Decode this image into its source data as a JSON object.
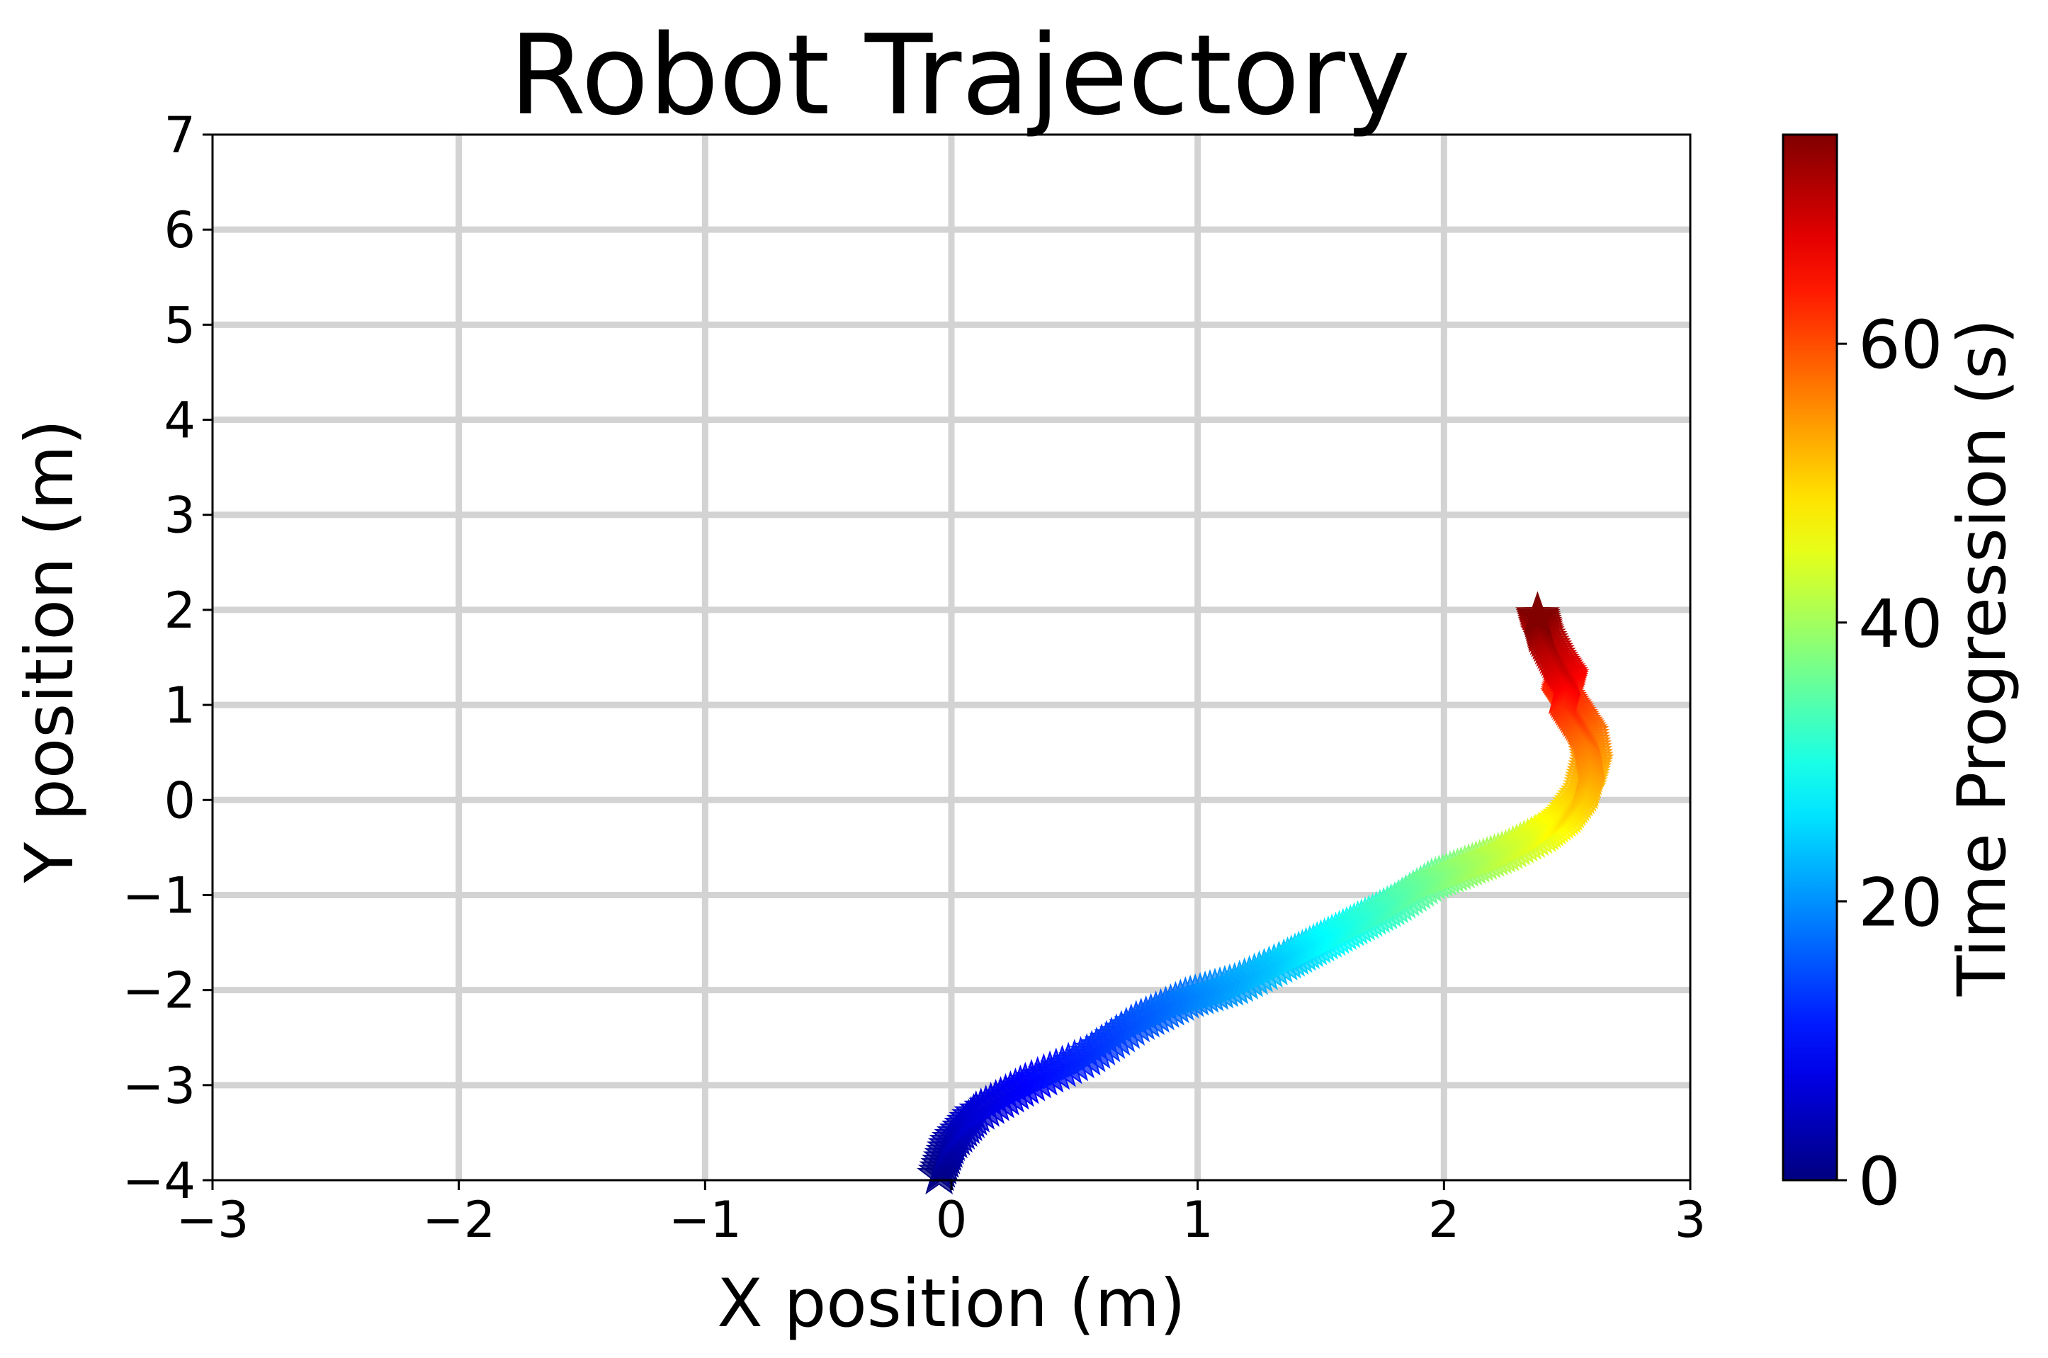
{
  "chart_data": {
    "type": "scatter",
    "title": "Robot Trajectory",
    "xlabel": "X position (m)",
    "ylabel": "Y position (m)",
    "xlim": [
      -3,
      3
    ],
    "ylim": [
      -4,
      7
    ],
    "xticks": [
      -3,
      -2,
      -1,
      0,
      1,
      2,
      3
    ],
    "yticks": [
      -4,
      -3,
      -2,
      -1,
      0,
      1,
      2,
      3,
      4,
      5,
      6,
      7
    ],
    "xtick_labels": [
      "−3",
      "−2",
      "−1",
      "0",
      "1",
      "2",
      "3"
    ],
    "ytick_labels": [
      "−4",
      "−3",
      "−2",
      "−1",
      "0",
      "1",
      "2",
      "3",
      "4",
      "5",
      "6",
      "7"
    ],
    "grid": true,
    "grid_color": "#d3d3d3",
    "marker": "star",
    "colormap": "jet",
    "colorbar": {
      "label": "Time Progression (s)",
      "range": [
        0,
        75
      ],
      "ticks": [
        0,
        20,
        40,
        60
      ],
      "tick_labels": [
        "0",
        "20",
        "40",
        "60"
      ]
    },
    "trajectory_keypoints": [
      {
        "t": 0,
        "x": -0.05,
        "y": -3.95
      },
      {
        "t": 3,
        "x": 0.0,
        "y": -3.6
      },
      {
        "t": 6,
        "x": 0.1,
        "y": -3.3
      },
      {
        "t": 9,
        "x": 0.3,
        "y": -3.0
      },
      {
        "t": 12,
        "x": 0.55,
        "y": -2.7
      },
      {
        "t": 15,
        "x": 0.75,
        "y": -2.35
      },
      {
        "t": 18,
        "x": 0.95,
        "y": -2.1
      },
      {
        "t": 21,
        "x": 1.15,
        "y": -1.95
      },
      {
        "t": 24,
        "x": 1.35,
        "y": -1.7
      },
      {
        "t": 27,
        "x": 1.5,
        "y": -1.5
      },
      {
        "t": 30,
        "x": 1.65,
        "y": -1.3
      },
      {
        "t": 33,
        "x": 1.8,
        "y": -1.1
      },
      {
        "t": 36,
        "x": 1.95,
        "y": -0.85
      },
      {
        "t": 39,
        "x": 2.1,
        "y": -0.7
      },
      {
        "t": 42,
        "x": 2.25,
        "y": -0.55
      },
      {
        "t": 45,
        "x": 2.4,
        "y": -0.35
      },
      {
        "t": 48,
        "x": 2.5,
        "y": -0.15
      },
      {
        "t": 51,
        "x": 2.57,
        "y": 0.1
      },
      {
        "t": 54,
        "x": 2.6,
        "y": 0.4
      },
      {
        "t": 57,
        "x": 2.58,
        "y": 0.7
      },
      {
        "t": 60,
        "x": 2.53,
        "y": 0.9
      },
      {
        "t": 63,
        "x": 2.48,
        "y": 1.1
      },
      {
        "t": 66,
        "x": 2.5,
        "y": 1.3
      },
      {
        "t": 69,
        "x": 2.45,
        "y": 1.5
      },
      {
        "t": 72,
        "x": 2.4,
        "y": 1.75
      },
      {
        "t": 75,
        "x": 2.38,
        "y": 1.95
      }
    ]
  }
}
